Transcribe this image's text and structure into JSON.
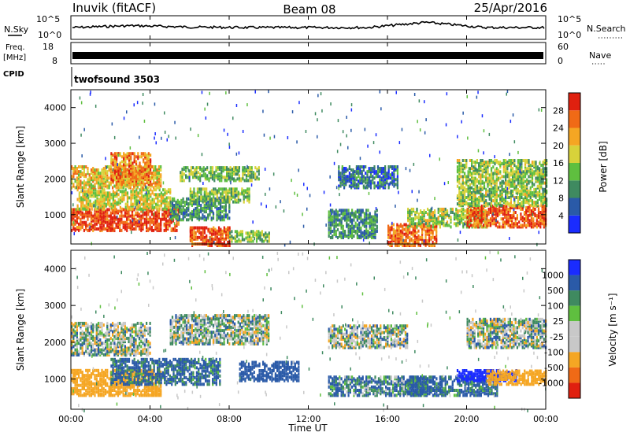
{
  "header": {
    "station": "Inuvik (fitACF)",
    "beam": "Beam 08",
    "date": "25/Apr/2016"
  },
  "side_labels": {
    "nsky": "N.Sky",
    "freq_line1": "Freq.",
    "freq_line2": "[MHz]",
    "cpid": "CPID",
    "nsearch": "N.Search",
    "nave": "Nave"
  },
  "cpid_panel": {
    "program": "twofsound 3503"
  },
  "colors": {
    "power_scale": [
      "#1a2cff",
      "#2a5aa8",
      "#3f8a60",
      "#5fbf3f",
      "#d8d23a",
      "#f5a623",
      "#f06a16",
      "#e0200f"
    ],
    "velocity_scale": [
      "#e0200f",
      "#f06a16",
      "#f5a623",
      "#c8c8c8",
      "#c8c8c8",
      "#5fbf3f",
      "#3f8a60",
      "#2a5aa8",
      "#1a2cff"
    ]
  },
  "chart_data": [
    {
      "type": "line",
      "name": "noise",
      "y_left_ticks": [
        "10^5",
        "10^0"
      ],
      "y_right_ticks": [
        "10^5",
        "10^0"
      ],
      "x": [
        "00:00",
        "04:00",
        "08:00",
        "12:00",
        "16:00",
        "20:00",
        "00:00"
      ],
      "level_fraction": [
        0.5,
        0.58,
        0.52,
        0.5,
        0.5,
        0.5,
        0.72,
        0.5,
        0.5
      ]
    },
    {
      "type": "line",
      "name": "frequency / nave",
      "y_left_ticks": [
        "18",
        "8"
      ],
      "y_right_ticks": [
        "60",
        "0"
      ],
      "level_fraction": 0.35
    },
    {
      "type": "heatmap",
      "name": "power",
      "title": "",
      "xlabel": "",
      "ylabel": "Slant Range [km]",
      "y_ticks": [
        "1000",
        "2000",
        "3000",
        "4000"
      ],
      "ylim": [
        180,
        4500
      ],
      "xlim": [
        0,
        24
      ],
      "colorbar_label": "Power [dB]",
      "colorbar_ticks": [
        "4",
        "8",
        "12",
        "16",
        "20",
        "24",
        "28"
      ],
      "colorbar_range": [
        0,
        32
      ],
      "regions": [
        {
          "t0": 0.0,
          "t1": 5.4,
          "r0": 600,
          "r1": 1200,
          "v": 29
        },
        {
          "t0": 0.3,
          "t1": 5.0,
          "r0": 1200,
          "r1": 1750,
          "v": 18
        },
        {
          "t0": 0.0,
          "t1": 4.5,
          "r0": 1800,
          "r1": 2400,
          "v": 20
        },
        {
          "t0": 2.0,
          "t1": 4.0,
          "r0": 1900,
          "r1": 2800,
          "v": 24
        },
        {
          "t0": 5.0,
          "t1": 8.0,
          "r0": 900,
          "r1": 1500,
          "v": 10
        },
        {
          "t0": 6.0,
          "t1": 9.0,
          "r0": 1400,
          "r1": 1800,
          "v": 14
        },
        {
          "t0": 5.5,
          "t1": 9.5,
          "r0": 2000,
          "r1": 2400,
          "v": 14
        },
        {
          "t0": 6.0,
          "t1": 8.0,
          "r0": 180,
          "r1": 700,
          "v": 28
        },
        {
          "t0": 8.0,
          "t1": 10.0,
          "r0": 300,
          "r1": 600,
          "v": 14
        },
        {
          "t0": 13.5,
          "t1": 16.5,
          "r0": 1800,
          "r1": 2400,
          "v": 8
        },
        {
          "t0": 13.0,
          "t1": 15.5,
          "r0": 400,
          "r1": 1200,
          "v": 10
        },
        {
          "t0": 16.0,
          "t1": 18.5,
          "r0": 180,
          "r1": 800,
          "v": 26
        },
        {
          "t0": 17.0,
          "t1": 21.0,
          "r0": 700,
          "r1": 1200,
          "v": 16
        },
        {
          "t0": 20.0,
          "t1": 24.0,
          "r0": 700,
          "r1": 1300,
          "v": 27
        },
        {
          "t0": 19.5,
          "t1": 24.0,
          "r0": 1300,
          "r1": 2600,
          "v": 15
        }
      ]
    },
    {
      "type": "heatmap",
      "name": "velocity",
      "title": "",
      "xlabel": "Time UT",
      "ylabel": "Slant Range [km]",
      "y_ticks": [
        "1000",
        "2000",
        "3000",
        "4000"
      ],
      "x_ticks": [
        "00:00",
        "04:00",
        "08:00",
        "12:00",
        "16:00",
        "20:00",
        "00:00"
      ],
      "ylim": [
        180,
        4500
      ],
      "xlim": [
        0,
        24
      ],
      "colorbar_label": "Velocity [m s⁻¹]",
      "colorbar_ticks": [
        "1000",
        "500",
        "100",
        "25",
        "-25",
        "-100",
        "-500",
        "-1000"
      ],
      "regions": [
        {
          "t0": 0.0,
          "t1": 4.5,
          "r0": 600,
          "r1": 1300,
          "v": -300
        },
        {
          "t0": 0.0,
          "t1": 4.0,
          "r0": 1700,
          "r1": 2600,
          "v": 0
        },
        {
          "t0": 2.0,
          "t1": 7.5,
          "r0": 900,
          "r1": 1600,
          "v": 150
        },
        {
          "t0": 5.0,
          "t1": 10.0,
          "r0": 2000,
          "r1": 2800,
          "v": 0
        },
        {
          "t0": 8.5,
          "t1": 11.5,
          "r0": 1000,
          "r1": 1500,
          "v": 300
        },
        {
          "t0": 13.0,
          "t1": 17.0,
          "r0": 1900,
          "r1": 2500,
          "v": 0
        },
        {
          "t0": 13.0,
          "t1": 18.0,
          "r0": 600,
          "r1": 1100,
          "v": 100
        },
        {
          "t0": 17.0,
          "t1": 21.5,
          "r0": 600,
          "r1": 1100,
          "v": 150
        },
        {
          "t0": 19.5,
          "t1": 22.5,
          "r0": 1000,
          "r1": 1300,
          "v": 900
        },
        {
          "t0": 21.0,
          "t1": 24.0,
          "r0": 900,
          "r1": 1300,
          "v": -350
        },
        {
          "t0": 20.0,
          "t1": 24.0,
          "r0": 1900,
          "r1": 2700,
          "v": 0
        }
      ]
    }
  ]
}
